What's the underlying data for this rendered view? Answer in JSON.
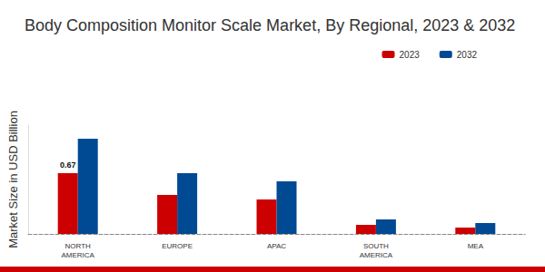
{
  "chart_data": {
    "type": "bar",
    "title": "Body Composition Monitor Scale Market, By Regional, 2023 & 2032",
    "y_label": "Market Size in USD Billion",
    "categories": [
      "NORTH\nAMERICA",
      "EUROPE",
      "APAC",
      "SOUTH\nAMERICA",
      "MEA"
    ],
    "series": [
      {
        "name": "2023",
        "color": "#cc0000",
        "values": [
          0.67,
          0.43,
          0.38,
          0.1,
          0.07
        ],
        "value_labels": [
          "0.67",
          null,
          null,
          null,
          null
        ]
      },
      {
        "name": "2032",
        "color": "#004a93",
        "values": [
          1.05,
          0.67,
          0.58,
          0.16,
          0.12
        ]
      }
    ],
    "ylim": [
      0,
      1.2
    ],
    "grid": false,
    "legend": "top-right",
    "tick_labels": "x"
  }
}
